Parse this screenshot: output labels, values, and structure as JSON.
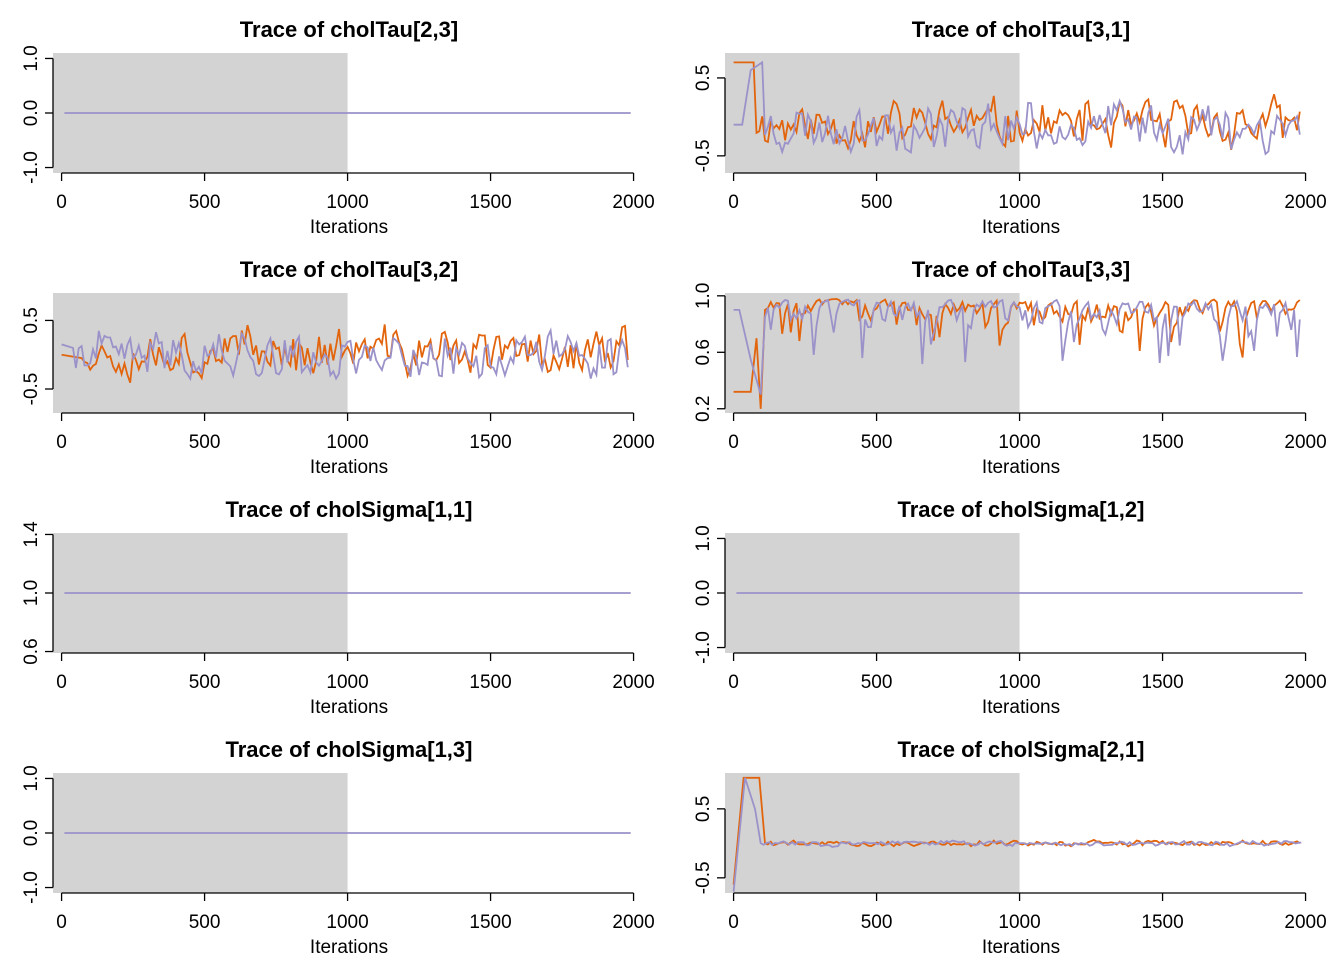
{
  "colors": {
    "chain1": "#9a92c9",
    "chain2": "#e2640c",
    "burnin": "#d3d3d3",
    "axis": "#000000"
  },
  "chart_data": [
    {
      "type": "line",
      "title": "Trace of  cholTau[2,3]",
      "xlabel": "Iterations",
      "xticks": [
        "0",
        "500",
        "1000",
        "1500",
        "2000"
      ],
      "xlim": [
        -30,
        2040
      ],
      "burnin": [
        0,
        1000
      ],
      "yticks": [
        {
          "v": -1.0,
          "label": "-1.0"
        },
        {
          "v": 0.0,
          "label": "0.0"
        },
        {
          "v": 1.0,
          "label": "1.0"
        }
      ],
      "ylim": [
        -1.1,
        1.1
      ],
      "series": [
        {
          "kind": "const",
          "value": 0.0,
          "x": [
            10,
            1990
          ]
        }
      ]
    },
    {
      "type": "line",
      "title": "Trace of  cholTau[3,1]",
      "xlabel": "Iterations",
      "xticks": [
        "0",
        "500",
        "1000",
        "1500",
        "2000"
      ],
      "xlim": [
        -30,
        2040
      ],
      "burnin": [
        0,
        1000
      ],
      "yticks": [
        {
          "v": -0.5,
          "label": "-0.5"
        },
        {
          "v": 0.5,
          "label": "0.5"
        }
      ],
      "ylim": [
        -0.72,
        0.82
      ],
      "series": [
        {
          "kind": "noise",
          "color": "chain2",
          "seed": 11,
          "center": -0.1,
          "spread": 0.45,
          "min": -0.6,
          "max": 0.6,
          "burn": [
            [
              0,
              0.7
            ],
            [
              70,
              0.7
            ]
          ]
        },
        {
          "kind": "noise",
          "color": "chain1",
          "seed": 23,
          "center": -0.12,
          "spread": 0.45,
          "min": -0.65,
          "max": 0.58,
          "burn": [
            [
              0,
              -0.1
            ],
            [
              30,
              -0.1
            ],
            [
              60,
              0.6
            ],
            [
              100,
              0.7
            ]
          ]
        }
      ]
    },
    {
      "type": "line",
      "title": "Trace of  cholTau[3,2]",
      "xlabel": "Iterations",
      "xticks": [
        "0",
        "500",
        "1000",
        "1500",
        "2000"
      ],
      "xlim": [
        -30,
        2040
      ],
      "burnin": [
        0,
        1000
      ],
      "yticks": [
        {
          "v": -0.5,
          "label": "-0.5"
        },
        {
          "v": 0.5,
          "label": "0.5"
        }
      ],
      "ylim": [
        -0.85,
        0.9
      ],
      "series": [
        {
          "kind": "noise",
          "color": "chain2",
          "seed": 37,
          "center": 0.05,
          "spread": 0.5,
          "min": -0.75,
          "max": 0.78,
          "burn": [
            [
              0,
              0.0
            ],
            [
              70,
              -0.05
            ]
          ]
        },
        {
          "kind": "noise",
          "color": "chain1",
          "seed": 41,
          "center": 0.0,
          "spread": 0.5,
          "min": -0.8,
          "max": 0.8,
          "burn": [
            [
              0,
              0.15
            ],
            [
              40,
              0.1
            ]
          ]
        }
      ]
    },
    {
      "type": "line",
      "title": "Trace of  cholTau[3,3]",
      "xlabel": "Iterations",
      "xticks": [
        "0",
        "500",
        "1000",
        "1500",
        "2000"
      ],
      "xlim": [
        -30,
        2040
      ],
      "burnin": [
        0,
        1000
      ],
      "yticks": [
        {
          "v": 0.2,
          "label": "0.2"
        },
        {
          "v": 0.6,
          "label": "0.6"
        },
        {
          "v": 1.0,
          "label": "1.0"
        }
      ],
      "ylim": [
        0.17,
        1.02
      ],
      "series": [
        {
          "kind": "noise",
          "color": "chain2",
          "seed": 53,
          "center": 0.84,
          "spread": 0.2,
          "min": 0.45,
          "max": 0.98,
          "skew": true,
          "burn": [
            [
              0,
              0.32
            ],
            [
              60,
              0.32
            ],
            [
              80,
              0.7
            ],
            [
              95,
              0.2
            ],
            [
              110,
              0.9
            ]
          ]
        },
        {
          "kind": "noise",
          "color": "chain1",
          "seed": 67,
          "center": 0.82,
          "spread": 0.22,
          "min": 0.3,
          "max": 0.98,
          "skew": true,
          "burn": [
            [
              0,
              0.9
            ],
            [
              20,
              0.9
            ],
            [
              60,
              0.55
            ],
            [
              95,
              0.3
            ],
            [
              110,
              0.85
            ]
          ]
        }
      ]
    },
    {
      "type": "line",
      "title": "Trace of  cholSigma[1,1]",
      "xlabel": "Iterations",
      "xticks": [
        "0",
        "500",
        "1000",
        "1500",
        "2000"
      ],
      "xlim": [
        -30,
        2040
      ],
      "burnin": [
        0,
        1000
      ],
      "yticks": [
        {
          "v": 0.6,
          "label": "0.6"
        },
        {
          "v": 1.0,
          "label": "1.0"
        },
        {
          "v": 1.4,
          "label": "1.4"
        }
      ],
      "ylim": [
        0.59,
        1.41
      ],
      "series": [
        {
          "kind": "const",
          "value": 1.0,
          "x": [
            10,
            1990
          ]
        }
      ]
    },
    {
      "type": "line",
      "title": "Trace of  cholSigma[1,2]",
      "xlabel": "Iterations",
      "xticks": [
        "0",
        "500",
        "1000",
        "1500",
        "2000"
      ],
      "xlim": [
        -30,
        2040
      ],
      "burnin": [
        0,
        1000
      ],
      "yticks": [
        {
          "v": -1.0,
          "label": "-1.0"
        },
        {
          "v": 0.0,
          "label": "0.0"
        },
        {
          "v": 1.0,
          "label": "1.0"
        }
      ],
      "ylim": [
        -1.1,
        1.1
      ],
      "series": [
        {
          "kind": "const",
          "value": 0.0,
          "x": [
            10,
            1990
          ]
        }
      ]
    },
    {
      "type": "line",
      "title": "Trace of  cholSigma[1,3]",
      "xlabel": "Iterations",
      "xticks": [
        "0",
        "500",
        "1000",
        "1500",
        "2000"
      ],
      "xlim": [
        -30,
        2040
      ],
      "burnin": [
        0,
        1000
      ],
      "yticks": [
        {
          "v": -1.0,
          "label": "-1.0"
        },
        {
          "v": 0.0,
          "label": "0.0"
        },
        {
          "v": 1.0,
          "label": "1.0"
        }
      ],
      "ylim": [
        -1.1,
        1.1
      ],
      "series": [
        {
          "kind": "const",
          "value": 0.0,
          "x": [
            10,
            1990
          ]
        }
      ]
    },
    {
      "type": "line",
      "title": "Trace of  cholSigma[2,1]",
      "xlabel": "Iterations",
      "xticks": [
        "0",
        "500",
        "1000",
        "1500",
        "2000"
      ],
      "xlim": [
        -30,
        2040
      ],
      "burnin": [
        0,
        1000
      ],
      "yticks": [
        {
          "v": -0.5,
          "label": "-0.5"
        },
        {
          "v": 0.5,
          "label": "0.5"
        }
      ],
      "ylim": [
        -0.72,
        1.02
      ],
      "series": [
        {
          "kind": "noise",
          "color": "chain2",
          "seed": 79,
          "center": 0.0,
          "spread": 0.06,
          "min": -0.12,
          "max": 0.12,
          "burn": [
            [
              0,
              -0.6
            ],
            [
              35,
              0.95
            ],
            [
              90,
              0.95
            ],
            [
              110,
              0.0
            ]
          ]
        },
        {
          "kind": "noise",
          "color": "chain1",
          "seed": 83,
          "center": 0.0,
          "spread": 0.06,
          "min": -0.12,
          "max": 0.12,
          "burn": [
            [
              0,
              -0.7
            ],
            [
              40,
              0.95
            ],
            [
              75,
              0.5
            ],
            [
              95,
              0.0
            ]
          ]
        }
      ]
    }
  ]
}
